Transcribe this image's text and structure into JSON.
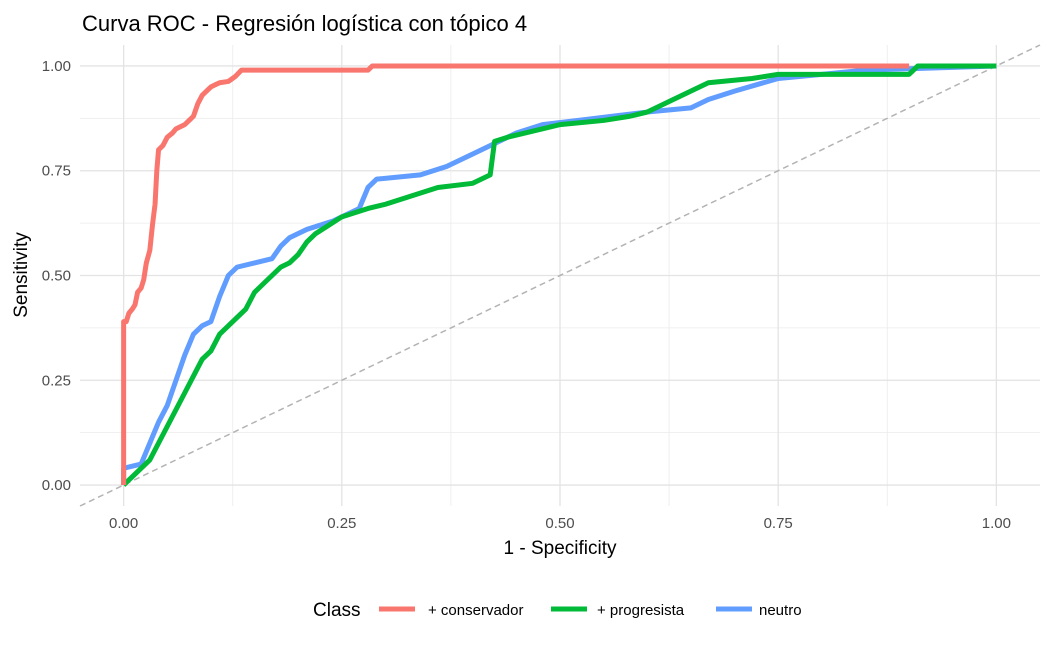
{
  "chart_data": {
    "type": "line",
    "title": "Curva ROC - Regresión logística con tópico 4",
    "xlabel": "1 - Specificity",
    "ylabel": "Sensitivity",
    "xlim": [
      -0.05,
      1.05
    ],
    "ylim": [
      -0.05,
      1.05
    ],
    "x_ticks": [
      0,
      0.25,
      0.5,
      0.75,
      1
    ],
    "x_tick_labels": [
      "0.00",
      "0.25",
      "0.50",
      "0.75",
      "1.00"
    ],
    "y_ticks": [
      0,
      0.25,
      0.5,
      0.75,
      1
    ],
    "y_tick_labels": [
      "0.00",
      "0.25",
      "0.50",
      "0.75",
      "1.00"
    ],
    "grid": true,
    "legend": {
      "title": "Class",
      "position": "bottom"
    },
    "reference_line": {
      "style": "dashed",
      "color": "#b3b3b3",
      "from": [
        -0.05,
        -0.05
      ],
      "to": [
        1.05,
        1.05
      ]
    },
    "series": [
      {
        "name": "+ conservador",
        "color": "#F8766D",
        "points": [
          [
            0,
            0
          ],
          [
            0,
            0.39
          ],
          [
            0.003,
            0.39
          ],
          [
            0.006,
            0.41
          ],
          [
            0.01,
            0.42
          ],
          [
            0.013,
            0.43
          ],
          [
            0.016,
            0.46
          ],
          [
            0.02,
            0.47
          ],
          [
            0.023,
            0.49
          ],
          [
            0.026,
            0.53
          ],
          [
            0.03,
            0.56
          ],
          [
            0.033,
            0.62
          ],
          [
            0.036,
            0.67
          ],
          [
            0.038,
            0.75
          ],
          [
            0.04,
            0.8
          ],
          [
            0.045,
            0.81
          ],
          [
            0.05,
            0.83
          ],
          [
            0.056,
            0.84
          ],
          [
            0.06,
            0.85
          ],
          [
            0.065,
            0.855
          ],
          [
            0.07,
            0.86
          ],
          [
            0.075,
            0.87
          ],
          [
            0.08,
            0.88
          ],
          [
            0.085,
            0.91
          ],
          [
            0.09,
            0.93
          ],
          [
            0.095,
            0.94
          ],
          [
            0.1,
            0.95
          ],
          [
            0.105,
            0.955
          ],
          [
            0.11,
            0.96
          ],
          [
            0.12,
            0.963
          ],
          [
            0.128,
            0.975
          ],
          [
            0.135,
            0.99
          ],
          [
            0.2,
            0.99
          ],
          [
            0.28,
            0.99
          ],
          [
            0.285,
            1
          ],
          [
            0.9,
            1
          ]
        ]
      },
      {
        "name": "+ progresista",
        "color": "#00BA38",
        "points": [
          [
            0,
            0
          ],
          [
            0.01,
            0.02
          ],
          [
            0.02,
            0.04
          ],
          [
            0.03,
            0.06
          ],
          [
            0.04,
            0.1
          ],
          [
            0.05,
            0.14
          ],
          [
            0.06,
            0.18
          ],
          [
            0.07,
            0.22
          ],
          [
            0.08,
            0.26
          ],
          [
            0.09,
            0.3
          ],
          [
            0.1,
            0.32
          ],
          [
            0.11,
            0.36
          ],
          [
            0.12,
            0.38
          ],
          [
            0.13,
            0.4
          ],
          [
            0.14,
            0.42
          ],
          [
            0.15,
            0.46
          ],
          [
            0.16,
            0.48
          ],
          [
            0.17,
            0.5
          ],
          [
            0.18,
            0.52
          ],
          [
            0.19,
            0.53
          ],
          [
            0.2,
            0.55
          ],
          [
            0.21,
            0.58
          ],
          [
            0.22,
            0.6
          ],
          [
            0.235,
            0.62
          ],
          [
            0.25,
            0.64
          ],
          [
            0.28,
            0.66
          ],
          [
            0.3,
            0.67
          ],
          [
            0.33,
            0.69
          ],
          [
            0.36,
            0.71
          ],
          [
            0.4,
            0.72
          ],
          [
            0.42,
            0.74
          ],
          [
            0.425,
            0.82
          ],
          [
            0.44,
            0.83
          ],
          [
            0.48,
            0.85
          ],
          [
            0.5,
            0.86
          ],
          [
            0.55,
            0.87
          ],
          [
            0.58,
            0.88
          ],
          [
            0.6,
            0.89
          ],
          [
            0.62,
            0.91
          ],
          [
            0.64,
            0.93
          ],
          [
            0.67,
            0.96
          ],
          [
            0.72,
            0.97
          ],
          [
            0.75,
            0.98
          ],
          [
            0.9,
            0.98
          ],
          [
            0.91,
            1
          ],
          [
            1,
            1
          ]
        ]
      },
      {
        "name": "neutro",
        "color": "#619CFF",
        "points": [
          [
            0,
            0
          ],
          [
            0,
            0.04
          ],
          [
            0.02,
            0.05
          ],
          [
            0.03,
            0.1
          ],
          [
            0.04,
            0.15
          ],
          [
            0.05,
            0.19
          ],
          [
            0.06,
            0.25
          ],
          [
            0.07,
            0.31
          ],
          [
            0.08,
            0.36
          ],
          [
            0.09,
            0.38
          ],
          [
            0.1,
            0.39
          ],
          [
            0.11,
            0.45
          ],
          [
            0.12,
            0.5
          ],
          [
            0.13,
            0.52
          ],
          [
            0.15,
            0.53
          ],
          [
            0.17,
            0.54
          ],
          [
            0.18,
            0.57
          ],
          [
            0.19,
            0.59
          ],
          [
            0.21,
            0.61
          ],
          [
            0.24,
            0.63
          ],
          [
            0.27,
            0.66
          ],
          [
            0.28,
            0.71
          ],
          [
            0.29,
            0.73
          ],
          [
            0.34,
            0.74
          ],
          [
            0.37,
            0.76
          ],
          [
            0.4,
            0.79
          ],
          [
            0.42,
            0.81
          ],
          [
            0.45,
            0.84
          ],
          [
            0.48,
            0.86
          ],
          [
            0.52,
            0.87
          ],
          [
            0.56,
            0.88
          ],
          [
            0.6,
            0.89
          ],
          [
            0.65,
            0.9
          ],
          [
            0.67,
            0.92
          ],
          [
            0.7,
            0.94
          ],
          [
            0.75,
            0.97
          ],
          [
            0.8,
            0.98
          ],
          [
            0.85,
            0.99
          ],
          [
            1,
            1
          ]
        ]
      }
    ]
  }
}
